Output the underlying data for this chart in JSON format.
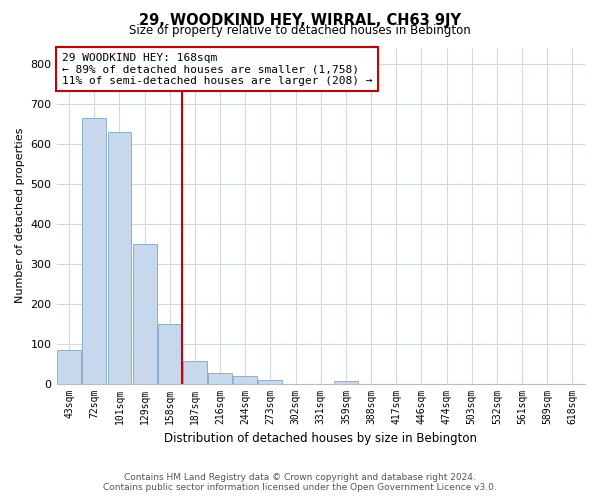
{
  "title": "29, WOODKIND HEY, WIRRAL, CH63 9JY",
  "subtitle": "Size of property relative to detached houses in Bebington",
  "xlabel": "Distribution of detached houses by size in Bebington",
  "ylabel": "Number of detached properties",
  "bar_labels": [
    "43sqm",
    "72sqm",
    "101sqm",
    "129sqm",
    "158sqm",
    "187sqm",
    "216sqm",
    "244sqm",
    "273sqm",
    "302sqm",
    "331sqm",
    "359sqm",
    "388sqm",
    "417sqm",
    "446sqm",
    "474sqm",
    "503sqm",
    "532sqm",
    "561sqm",
    "589sqm",
    "618sqm"
  ],
  "bar_values": [
    83,
    663,
    630,
    349,
    148,
    57,
    27,
    19,
    8,
    0,
    0,
    7,
    0,
    0,
    0,
    0,
    0,
    0,
    0,
    0,
    0
  ],
  "bar_color": "#c8d8ec",
  "bar_edge_color": "#8ab0d0",
  "ylim": [
    0,
    840
  ],
  "yticks": [
    0,
    100,
    200,
    300,
    400,
    500,
    600,
    700,
    800
  ],
  "property_line_x": 4.5,
  "property_line_color": "#cc0000",
  "annotation_title": "29 WOODKIND HEY: 168sqm",
  "annotation_line1": "← 89% of detached houses are smaller (1,758)",
  "annotation_line2": "11% of semi-detached houses are larger (208) →",
  "annotation_box_color": "#ffffff",
  "annotation_border_color": "#cc0000",
  "footer_line1": "Contains HM Land Registry data © Crown copyright and database right 2024.",
  "footer_line2": "Contains public sector information licensed under the Open Government Licence v3.0.",
  "background_color": "#ffffff",
  "grid_color": "#d0d8e8"
}
